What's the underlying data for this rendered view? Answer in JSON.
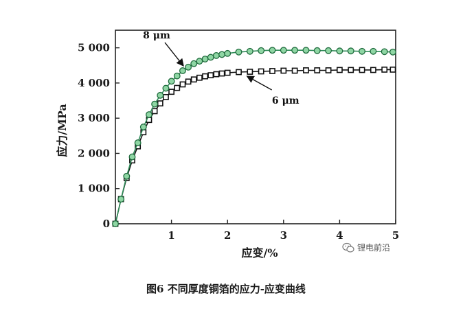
{
  "chart_data": {
    "type": "line",
    "title": "",
    "xlabel": "应变/%",
    "ylabel": "应力/MPa",
    "xlim": [
      0,
      5
    ],
    "ylim": [
      0,
      5500
    ],
    "x_ticks": [
      "1",
      "2",
      "3",
      "4",
      "5"
    ],
    "x_tick_values": [
      1,
      2,
      3,
      4,
      5
    ],
    "y_ticks": [
      "0",
      "1 000",
      "2 000",
      "3 000",
      "4 000",
      "5 000"
    ],
    "y_tick_values": [
      0,
      1000,
      2000,
      3000,
      4000,
      5000
    ],
    "grid": false,
    "series": [
      {
        "name": "8 μm",
        "color": "#2e8b57",
        "marker": "circle",
        "x": [
          0,
          0.1,
          0.2,
          0.3,
          0.4,
          0.5,
          0.6,
          0.7,
          0.8,
          0.9,
          1.0,
          1.1,
          1.2,
          1.3,
          1.4,
          1.5,
          1.6,
          1.7,
          1.8,
          1.9,
          2.0,
          2.2,
          2.4,
          2.6,
          2.8,
          3.0,
          3.2,
          3.4,
          3.6,
          3.8,
          4.0,
          4.2,
          4.4,
          4.6,
          4.8,
          4.95
        ],
        "y": [
          0,
          700,
          1350,
          1900,
          2300,
          2750,
          3100,
          3400,
          3650,
          3850,
          4050,
          4200,
          4350,
          4450,
          4550,
          4620,
          4680,
          4730,
          4780,
          4810,
          4840,
          4880,
          4900,
          4920,
          4930,
          4930,
          4930,
          4930,
          4920,
          4920,
          4910,
          4910,
          4900,
          4900,
          4890,
          4880
        ]
      },
      {
        "name": "6 μm",
        "color": "#111111",
        "marker": "square",
        "x": [
          0,
          0.1,
          0.2,
          0.3,
          0.4,
          0.5,
          0.6,
          0.7,
          0.8,
          0.9,
          1.0,
          1.1,
          1.2,
          1.3,
          1.4,
          1.5,
          1.6,
          1.7,
          1.8,
          1.9,
          2.0,
          2.2,
          2.4,
          2.6,
          2.8,
          3.0,
          3.2,
          3.4,
          3.6,
          3.8,
          4.0,
          4.2,
          4.4,
          4.6,
          4.8,
          4.95
        ],
        "y": [
          0,
          700,
          1300,
          1800,
          2200,
          2600,
          2950,
          3200,
          3420,
          3600,
          3750,
          3860,
          3960,
          4040,
          4100,
          4150,
          4190,
          4220,
          4250,
          4270,
          4290,
          4310,
          4320,
          4330,
          4340,
          4350,
          4350,
          4360,
          4360,
          4360,
          4370,
          4370,
          4370,
          4370,
          4380,
          4380
        ]
      }
    ],
    "annotations": [
      {
        "text": "8 μm",
        "series": 0,
        "point_x": 1.25,
        "point_y": 4370
      },
      {
        "text": "6 μm",
        "series": 1,
        "point_x": 2.3,
        "point_y": 4310
      }
    ]
  },
  "caption": "图6  不同厚度铜箔的应力-应变曲线",
  "watermark": {
    "icon": "wechat-icon",
    "text": "锂电前沿"
  }
}
